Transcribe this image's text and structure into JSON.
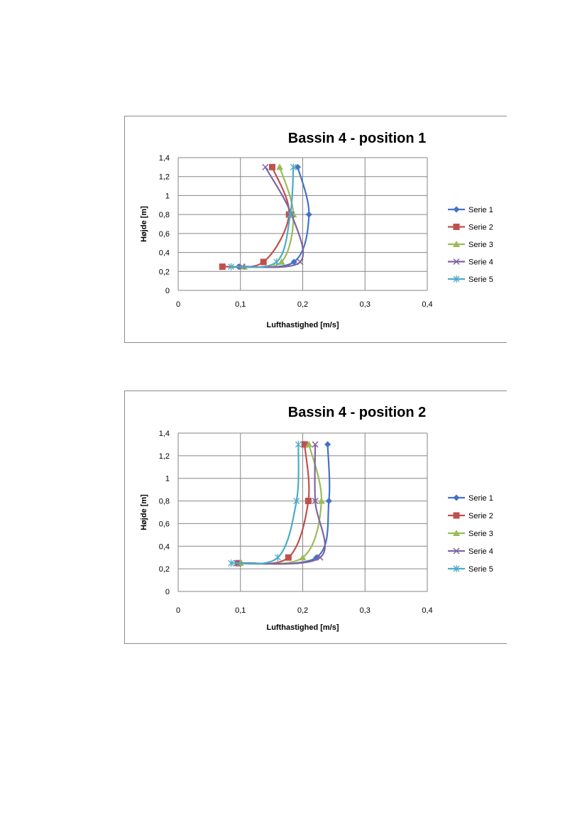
{
  "colors": {
    "Serie 1": "#4472c4",
    "Serie 2": "#c0504d",
    "Serie 3": "#9bbb59",
    "Serie 4": "#8064a2",
    "Serie 5": "#4bacc6"
  },
  "chart_data": [
    {
      "type": "line",
      "title": "Bassin 4 - position 1",
      "xlabel": "Lufthastighed [m/s]",
      "ylabel": "Højde [m]",
      "xlim": [
        0,
        0.4
      ],
      "ylim": [
        0,
        1.4
      ],
      "xticks": [
        "0",
        "0,1",
        "0,2",
        "0,3",
        "0,4"
      ],
      "yticks": [
        "0",
        "0,2",
        "0,4",
        "0,6",
        "0,8",
        "1",
        "1,2",
        "1,4"
      ],
      "grid": true,
      "legend": "right",
      "series": [
        {
          "name": "Serie 1",
          "marker": "diamond",
          "points": [
            [
              0.097,
              0.25
            ],
            [
              0.186,
              0.3
            ],
            [
              0.21,
              0.8
            ],
            [
              0.192,
              1.3
            ]
          ]
        },
        {
          "name": "Serie 2",
          "marker": "square",
          "points": [
            [
              0.071,
              0.25
            ],
            [
              0.137,
              0.3
            ],
            [
              0.178,
              0.8
            ],
            [
              0.151,
              1.3
            ]
          ]
        },
        {
          "name": "Serie 3",
          "marker": "triangle",
          "points": [
            [
              0.106,
              0.25
            ],
            [
              0.166,
              0.3
            ],
            [
              0.185,
              0.8
            ],
            [
              0.163,
              1.3
            ]
          ]
        },
        {
          "name": "Serie 4",
          "marker": "x",
          "points": [
            [
              0.103,
              0.25
            ],
            [
              0.196,
              0.3
            ],
            [
              0.182,
              0.8
            ],
            [
              0.14,
              1.3
            ]
          ]
        },
        {
          "name": "Serie 5",
          "marker": "star",
          "points": [
            [
              0.085,
              0.25
            ],
            [
              0.158,
              0.3
            ],
            [
              0.18,
              0.8
            ],
            [
              0.185,
              1.3
            ]
          ]
        }
      ]
    },
    {
      "type": "line",
      "title": "Bassin 4 - position 2",
      "xlabel": "Lufthastighed [m/s]",
      "ylabel": "Højde [m]",
      "xlim": [
        0,
        0.4
      ],
      "ylim": [
        0,
        1.4
      ],
      "xticks": [
        "0",
        "0,1",
        "0,2",
        "0,3",
        "0,4"
      ],
      "yticks": [
        "0",
        "0,2",
        "0,4",
        "0,6",
        "0,8",
        "1",
        "1,2",
        "1,4"
      ],
      "grid": true,
      "legend": "right",
      "series": [
        {
          "name": "Serie 1",
          "marker": "diamond",
          "points": [
            [
              0.1,
              0.25
            ],
            [
              0.222,
              0.3
            ],
            [
              0.242,
              0.8
            ],
            [
              0.24,
              1.3
            ]
          ]
        },
        {
          "name": "Serie 2",
          "marker": "square",
          "points": [
            [
              0.097,
              0.25
            ],
            [
              0.177,
              0.3
            ],
            [
              0.209,
              0.8
            ],
            [
              0.203,
              1.3
            ]
          ]
        },
        {
          "name": "Serie 3",
          "marker": "triangle",
          "points": [
            [
              0.1,
              0.25
            ],
            [
              0.2,
              0.3
            ],
            [
              0.23,
              0.8
            ],
            [
              0.21,
              1.3
            ]
          ]
        },
        {
          "name": "Serie 4",
          "marker": "x",
          "points": [
            [
              0.094,
              0.25
            ],
            [
              0.228,
              0.3
            ],
            [
              0.22,
              0.8
            ],
            [
              0.22,
              1.3
            ]
          ]
        },
        {
          "name": "Serie 5",
          "marker": "star",
          "points": [
            [
              0.085,
              0.25
            ],
            [
              0.16,
              0.3
            ],
            [
              0.19,
              0.8
            ],
            [
              0.193,
              1.3
            ]
          ]
        }
      ]
    }
  ]
}
